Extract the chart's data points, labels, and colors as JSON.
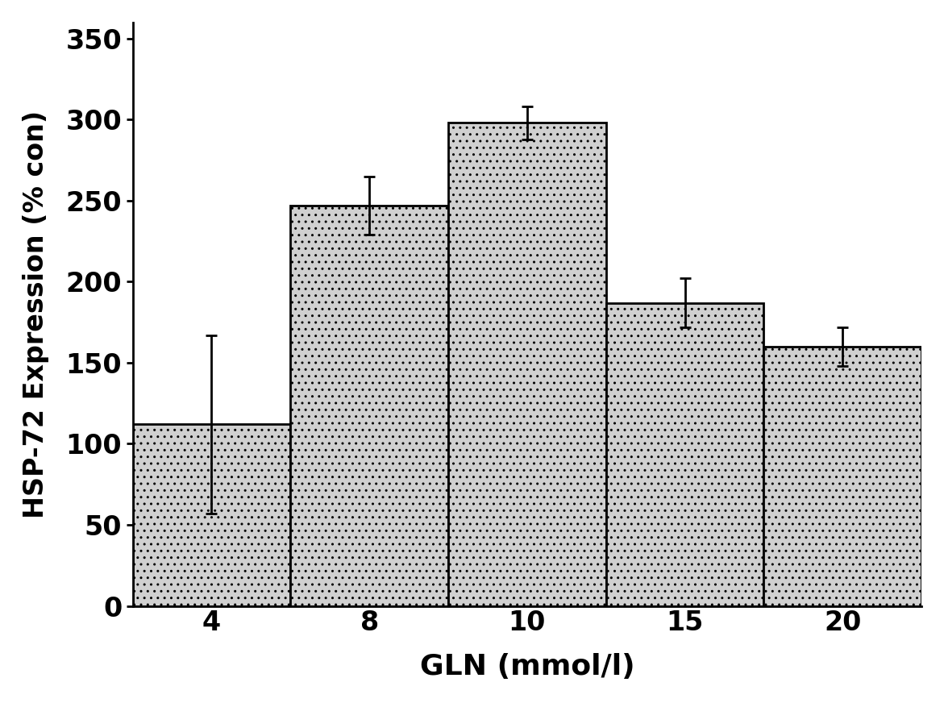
{
  "categories": [
    "4",
    "8",
    "10",
    "15",
    "20"
  ],
  "values": [
    112,
    247,
    298,
    187,
    160
  ],
  "errors": [
    55,
    18,
    10,
    15,
    12
  ],
  "bar_color": "#d0d0d0",
  "bar_edgecolor": "#000000",
  "xlabel": "GLN (mmol/l)",
  "ylabel": "HSP-72 Expression (% con)",
  "ylim": [
    0,
    360
  ],
  "yticks": [
    0,
    50,
    100,
    150,
    200,
    250,
    300,
    350
  ],
  "background_color": "#ffffff",
  "bar_width": 1.0,
  "xlabel_fontsize": 26,
  "ylabel_fontsize": 24,
  "tick_fontsize": 24,
  "tick_fontweight": "bold",
  "label_fontweight": "bold",
  "capsize": 5,
  "linewidth": 2.0,
  "hatch": "..",
  "hatch_color": "#888888"
}
